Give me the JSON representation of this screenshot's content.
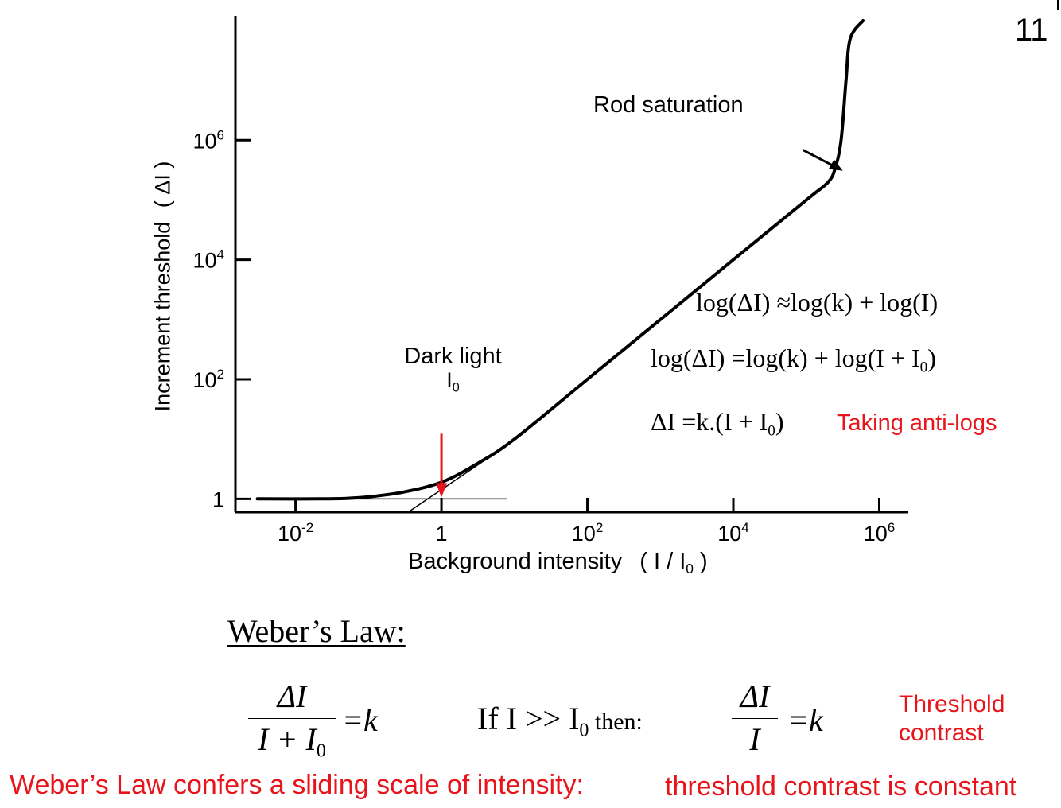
{
  "slide": {
    "number": "11"
  },
  "chart_data": {
    "type": "line",
    "xscale": "log",
    "yscale": "log",
    "xlabel": "Background intensity",
    "xlabel_units": "( I / I",
    "xlabel_units_sub": "0",
    "xlabel_units_close": ")",
    "ylabel": "Increment threshold",
    "ylabel_units": "( ΔI )",
    "x_ticks": [
      {
        "value": 0.01,
        "base": "10",
        "exp": "-2"
      },
      {
        "value": 1,
        "base": "1",
        "exp": ""
      },
      {
        "value": 100,
        "base": "10",
        "exp": "2"
      },
      {
        "value": 10000,
        "base": "10",
        "exp": "4"
      },
      {
        "value": 1000000,
        "base": "10",
        "exp": "6"
      }
    ],
    "y_ticks": [
      {
        "value": 1,
        "base": "1",
        "exp": ""
      },
      {
        "value": 100,
        "base": "10",
        "exp": "2"
      },
      {
        "value": 10000,
        "base": "10",
        "exp": "4"
      },
      {
        "value": 1000000,
        "base": "10",
        "exp": "6"
      }
    ],
    "xlim": [
      0.0015,
      2500000
    ],
    "ylim": [
      0.6,
      120000000
    ],
    "series": [
      {
        "x": [
          0.003,
          0.02,
          0.05,
          0.1,
          0.3,
          1,
          3,
          10,
          100,
          1000,
          10000,
          100000,
          200000,
          250000,
          300000,
          350000,
          400000,
          600000
        ],
        "y": [
          1,
          1,
          1.02,
          1.08,
          1.3,
          1.9,
          3.8,
          10,
          100,
          1000,
          10000,
          100000,
          200000,
          350000,
          1000000,
          10000000,
          50000000,
          100000000
        ]
      }
    ],
    "asymptotes": [
      {
        "x": [
          0.003,
          8
        ],
        "y": [
          1,
          1
        ]
      },
      {
        "x": [
          0.35,
          8
        ],
        "y": [
          0.6,
          8
        ]
      }
    ],
    "annotations": {
      "dark_light": {
        "line1": "Dark light",
        "line2": "I",
        "line2_sub": "0",
        "x": 1,
        "y": 1,
        "arrow_color": "#e8141b"
      },
      "rod_saturation": {
        "text": "Rod saturation",
        "x": 350000,
        "y": 350000
      }
    }
  },
  "equations": {
    "eq1": "log(ΔI) ≈log(k) + log(I)",
    "eq2": "log(ΔI) =log(k) + log(I + I",
    "eq2_sub": "0",
    "eq2_close": ")",
    "eq3": "ΔI =k.(I + I",
    "eq3_sub": "0",
    "eq3_close": ")",
    "anti_logs_note": "Taking anti-logs"
  },
  "weber": {
    "heading": "Weber’s Law:",
    "frac1_num": "ΔI",
    "frac1_den": "I + I",
    "frac1_den_sub": "0",
    "eq_k": "=k",
    "condition_main": "If I >> I",
    "condition_sub": "0",
    "condition_then": " then:",
    "frac2_num": "ΔI",
    "frac2_den": "I",
    "eq_k2": "=k",
    "threshold_line1": "Threshold",
    "threshold_line2": "contrast",
    "footer_left": "Weber’s Law confers a sliding scale of intensity:",
    "footer_right": "threshold contrast is constant"
  },
  "colors": {
    "accent_red": "#e8141b",
    "ink": "#000000"
  }
}
